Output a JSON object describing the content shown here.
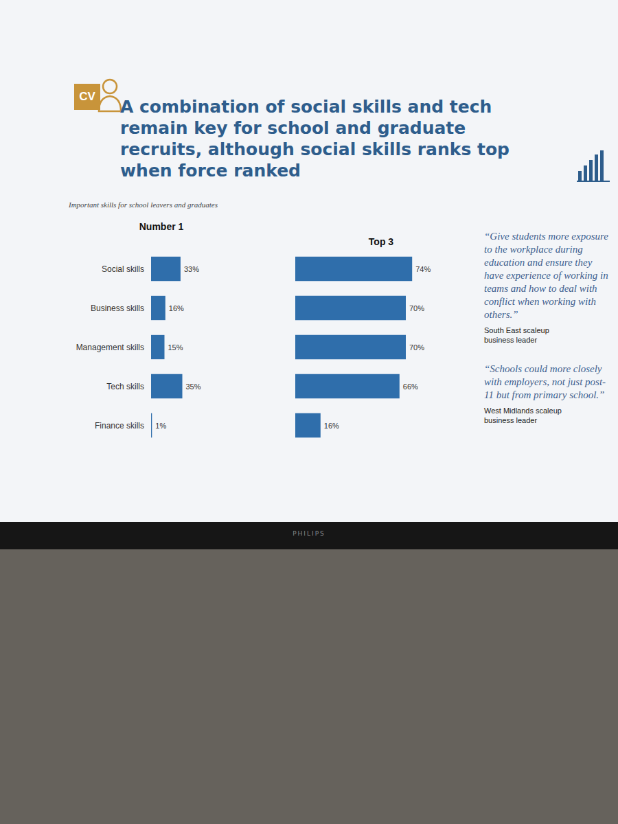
{
  "slide": {
    "logo": "CV",
    "title": "A combination of social skills and tech remain key for school and graduate recruits, although social skills ranks top when force ranked",
    "subtitle": "Important skills for school leavers and graduates",
    "quotes": [
      {
        "text": "“Give students more exposure to the workplace during education and ensure they have experience of working in teams and how to deal with conflict when working with others.”",
        "source": "South East scaleup business leader"
      },
      {
        "text": "“Schools could more closely with employers, not just post-11 but from primary school.”",
        "source": "West Midlands scaleup business leader"
      }
    ],
    "monitor_brand": "PHILIPS"
  },
  "chart_data": [
    {
      "type": "bar",
      "title": "Number 1",
      "orientation": "horizontal",
      "categories": [
        "Social skills",
        "Business skills",
        "Management skills",
        "Tech skills",
        "Finance skills"
      ],
      "values": [
        33,
        16,
        15,
        35,
        1
      ],
      "value_labels": [
        "33%",
        "16%",
        "15%",
        "35%",
        "1%"
      ],
      "data_labels": true,
      "color": "#2f6eab",
      "xlim": [
        0,
        100
      ],
      "tick_labels": "y",
      "grid": false
    },
    {
      "type": "bar",
      "title": "Top 3",
      "orientation": "horizontal",
      "categories": [
        null,
        null,
        null,
        null,
        null
      ],
      "values": [
        74,
        70,
        70,
        66,
        16
      ],
      "value_labels": [
        "74%",
        "70%",
        "70%",
        "66%",
        "16%"
      ],
      "data_labels": true,
      "color": "#2f6eab",
      "xlim": [
        0,
        100
      ],
      "tick_labels": false,
      "grid": false
    }
  ]
}
